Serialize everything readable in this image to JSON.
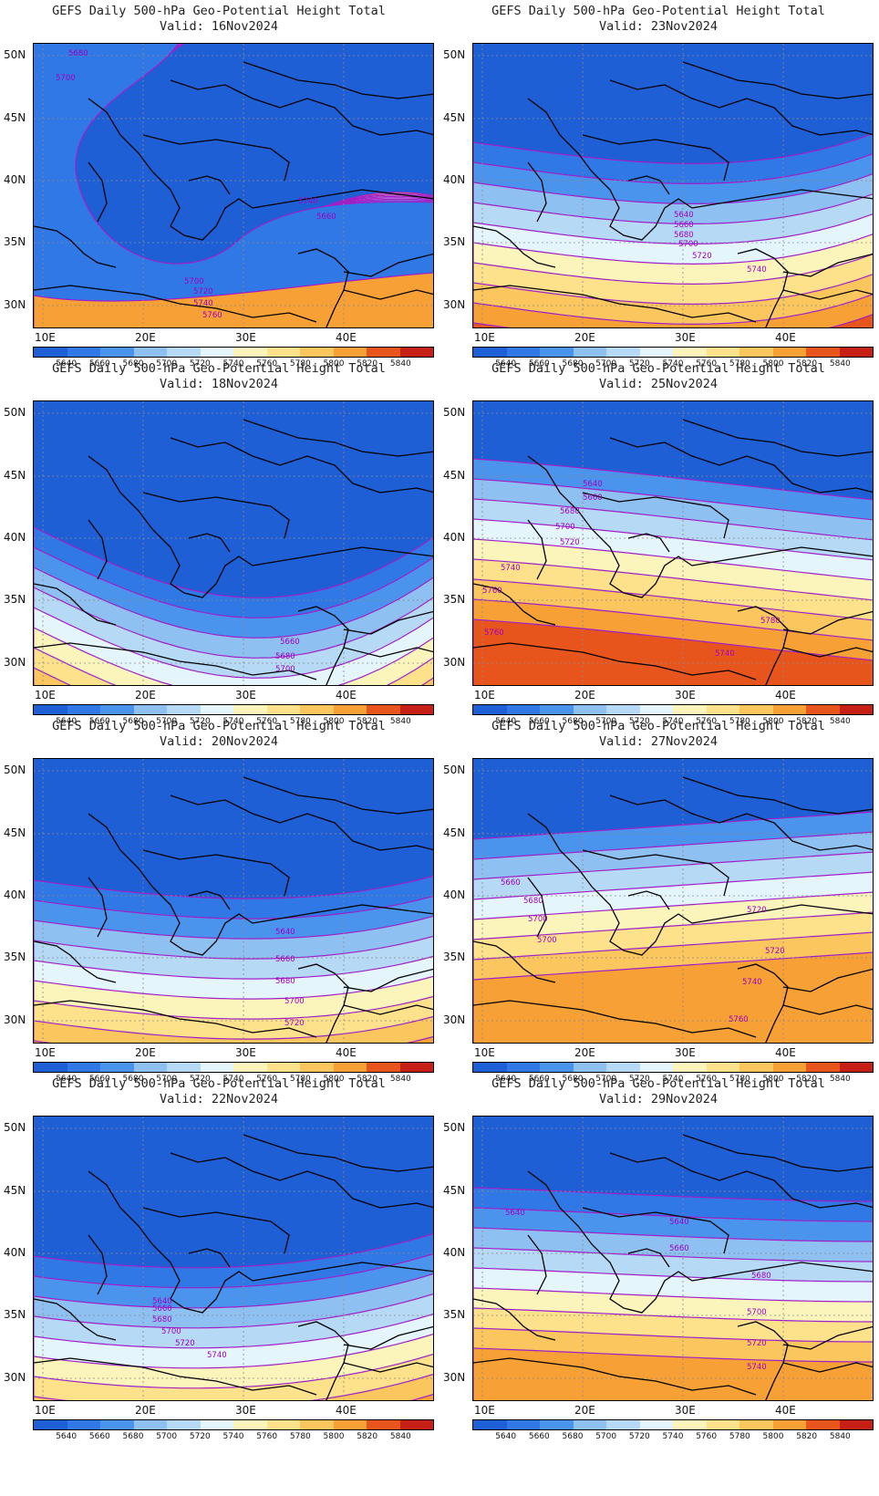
{
  "figure_title": "GEFS Daily 500-hPa Geo-Potential Height Total",
  "lat_labels": [
    "50N",
    "45N",
    "40N",
    "35N",
    "30N"
  ],
  "lon_labels": [
    "10E",
    "20E",
    "30E",
    "40E"
  ],
  "colorbar": {
    "levels": [
      "5640",
      "5660",
      "5680",
      "5700",
      "5720",
      "5740",
      "5760",
      "5780",
      "5800",
      "5820",
      "5840"
    ],
    "colors": [
      "#1f5fd6",
      "#2f78e6",
      "#4a94ee",
      "#8fc0f2",
      "#b6daf6",
      "#e4f6fb",
      "#fbf4bb",
      "#fde28b",
      "#fbc65e",
      "#f7a036",
      "#e8551c",
      "#c62016"
    ]
  },
  "panels": [
    {
      "title": "GEFS Daily 500-hPa Geo-Potential Height Total",
      "valid": "Valid: 16Nov2024",
      "contour_labels": [
        "5680",
        "5700",
        "5740",
        "5660",
        "5700",
        "5720",
        "5740",
        "5760"
      ]
    },
    {
      "title": "GEFS Daily 500-hPa Geo-Potential Height Total",
      "valid": "Valid: 23Nov2024",
      "contour_labels": [
        "5640",
        "5660",
        "5680",
        "5700",
        "5720",
        "5740"
      ]
    },
    {
      "title": "GEFS Daily 500-hPa Geo-Potential Height Total",
      "valid": "Valid: 18Nov2024",
      "contour_labels": [
        "5660",
        "5680",
        "5700"
      ]
    },
    {
      "title": "GEFS Daily 500-hPa Geo-Potential Height Total",
      "valid": "Valid: 25Nov2024",
      "contour_labels": [
        "5640",
        "5660",
        "5680",
        "5700",
        "5720",
        "5740",
        "5760",
        "5780",
        "5760",
        "5740"
      ]
    },
    {
      "title": "GEFS Daily 500-hPa Geo-Potential Height Total",
      "valid": "Valid: 20Nov2024",
      "contour_labels": [
        "5640",
        "5660",
        "5680",
        "5700",
        "5720"
      ]
    },
    {
      "title": "GEFS Daily 500-hPa Geo-Potential Height Total",
      "valid": "Valid: 27Nov2024",
      "contour_labels": [
        "5660",
        "5680",
        "5700",
        "5720",
        "5700",
        "5720",
        "5740",
        "5760"
      ]
    },
    {
      "title": "GEFS Daily 500-hPa Geo-Potential Height Total",
      "valid": "Valid: 22Nov2024",
      "contour_labels": [
        "5640",
        "5660",
        "5680",
        "5700",
        "5720",
        "5740"
      ]
    },
    {
      "title": "GEFS Daily 500-hPa Geo-Potential Height Total",
      "valid": "Valid: 29Nov2024",
      "contour_labels": [
        "5640",
        "5640",
        "5660",
        "5680",
        "5700",
        "5720",
        "5740"
      ]
    }
  ]
}
